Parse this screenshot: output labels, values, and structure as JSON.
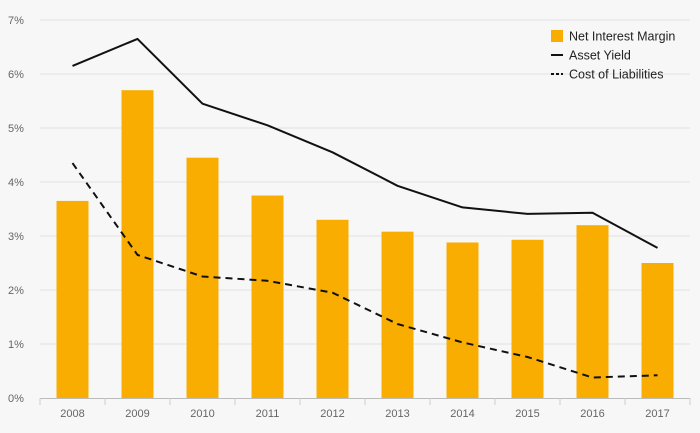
{
  "chart_data": {
    "type": "bar",
    "categories": [
      "2008",
      "2009",
      "2010",
      "2011",
      "2012",
      "2013",
      "2014",
      "2015",
      "2016",
      "2017"
    ],
    "series": [
      {
        "name": "Net Interest Margin",
        "kind": "bar",
        "color": "#f9ad00",
        "values": [
          3.65,
          5.7,
          4.45,
          3.75,
          3.3,
          3.08,
          2.88,
          2.93,
          3.2,
          2.5
        ]
      },
      {
        "name": "Asset Yield",
        "kind": "line",
        "style": "solid",
        "color": "#111111",
        "values": [
          6.15,
          6.65,
          5.45,
          5.05,
          4.55,
          3.93,
          3.53,
          3.41,
          3.43,
          2.78
        ]
      },
      {
        "name": "Cost of Liabilities",
        "kind": "line",
        "style": "dashed",
        "color": "#111111",
        "values": [
          4.35,
          2.65,
          2.25,
          2.17,
          1.95,
          1.37,
          1.03,
          0.76,
          0.38,
          0.42
        ]
      }
    ],
    "ylim": [
      0,
      7
    ],
    "yticks": [
      "0%",
      "1%",
      "2%",
      "3%",
      "4%",
      "5%",
      "6%",
      "7%"
    ],
    "grid": "horizontal",
    "legend": "top-right",
    "title": "",
    "xlabel": "",
    "ylabel": ""
  }
}
